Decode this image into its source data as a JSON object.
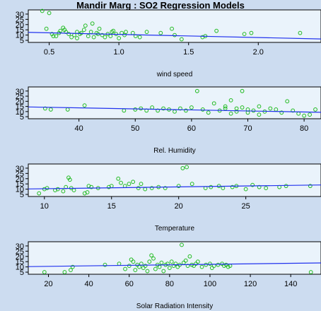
{
  "title": "Mandir Marg : SO2 Regression Models",
  "colors": {
    "background": "#ccdcf0",
    "panel": "#eaf3fb",
    "points": "#22bb22",
    "regression_line": "#2233ee",
    "axes": "#000000"
  },
  "chart_data": [
    {
      "type": "scatter",
      "title": "Mandir Marg : SO2 Regression Models",
      "xlabel": "wind speed",
      "ylabel": "",
      "xlim": [
        0.35,
        2.45
      ],
      "ylim": [
        3,
        34
      ],
      "xticks": [
        0.5,
        1.0,
        1.5,
        2.0
      ],
      "xtick_labels": [
        "0.5",
        "1.0",
        "1.5",
        "2.0"
      ],
      "yticks": [
        5,
        10,
        15,
        20,
        25,
        30
      ],
      "grid": false,
      "regression_line": [
        [
          0.35,
          12.6
        ],
        [
          2.45,
          6.3
        ]
      ],
      "points": [
        [
          0.45,
          33
        ],
        [
          0.48,
          16
        ],
        [
          0.5,
          31
        ],
        [
          0.52,
          11
        ],
        [
          0.53,
          9
        ],
        [
          0.55,
          9
        ],
        [
          0.57,
          12
        ],
        [
          0.58,
          14
        ],
        [
          0.6,
          17
        ],
        [
          0.61,
          15
        ],
        [
          0.62,
          13
        ],
        [
          0.64,
          11
        ],
        [
          0.66,
          8
        ],
        [
          0.68,
          10
        ],
        [
          0.7,
          13
        ],
        [
          0.7,
          7
        ],
        [
          0.72,
          11
        ],
        [
          0.73,
          12
        ],
        [
          0.75,
          15
        ],
        [
          0.76,
          19
        ],
        [
          0.78,
          9
        ],
        [
          0.8,
          13
        ],
        [
          0.81,
          21
        ],
        [
          0.82,
          8
        ],
        [
          0.84,
          12
        ],
        [
          0.85,
          11
        ],
        [
          0.86,
          16
        ],
        [
          0.88,
          10
        ],
        [
          0.9,
          8
        ],
        [
          0.92,
          11
        ],
        [
          0.94,
          9
        ],
        [
          0.95,
          13
        ],
        [
          0.96,
          14
        ],
        [
          0.98,
          11
        ],
        [
          1.0,
          7
        ],
        [
          1.02,
          12
        ],
        [
          1.04,
          10
        ],
        [
          1.05,
          13
        ],
        [
          1.1,
          12
        ],
        [
          1.12,
          9
        ],
        [
          1.15,
          8
        ],
        [
          1.2,
          13
        ],
        [
          1.3,
          12
        ],
        [
          1.38,
          16
        ],
        [
          1.4,
          10
        ],
        [
          1.45,
          6
        ],
        [
          1.6,
          8
        ],
        [
          1.62,
          9
        ],
        [
          1.7,
          14
        ],
        [
          1.9,
          11
        ],
        [
          1.95,
          12
        ],
        [
          2.3,
          12
        ]
      ]
    },
    {
      "type": "scatter",
      "xlabel": "Rel. Humidity",
      "ylabel": "",
      "xlim": [
        31,
        83
      ],
      "ylim": [
        3,
        34
      ],
      "xticks": [
        40,
        50,
        60,
        70,
        80
      ],
      "xtick_labels": [
        "40",
        "50",
        "60",
        "70",
        "80"
      ],
      "yticks": [
        5,
        10,
        15,
        20,
        25,
        30
      ],
      "grid": false,
      "regression_line": [
        [
          31,
          14.5
        ],
        [
          83,
          9.3
        ]
      ],
      "points": [
        [
          34,
          13
        ],
        [
          35,
          12
        ],
        [
          38,
          12
        ],
        [
          41,
          16
        ],
        [
          48,
          11
        ],
        [
          50,
          12
        ],
        [
          51,
          13
        ],
        [
          52,
          11
        ],
        [
          53,
          14
        ],
        [
          54,
          11
        ],
        [
          55,
          13
        ],
        [
          56,
          12
        ],
        [
          57,
          10
        ],
        [
          58,
          13
        ],
        [
          59,
          11
        ],
        [
          60,
          14
        ],
        [
          61,
          30
        ],
        [
          62,
          12
        ],
        [
          63,
          9
        ],
        [
          64,
          18
        ],
        [
          65,
          11
        ],
        [
          66,
          13
        ],
        [
          66,
          15
        ],
        [
          67,
          8
        ],
        [
          67,
          21
        ],
        [
          68,
          10
        ],
        [
          68,
          13
        ],
        [
          69,
          30
        ],
        [
          69,
          14
        ],
        [
          70,
          12
        ],
        [
          70,
          9
        ],
        [
          71,
          11
        ],
        [
          72,
          15
        ],
        [
          72,
          7
        ],
        [
          73,
          10
        ],
        [
          74,
          13
        ],
        [
          75,
          12
        ],
        [
          76,
          9
        ],
        [
          77,
          20
        ],
        [
          78,
          11
        ],
        [
          79,
          8
        ],
        [
          80,
          6
        ],
        [
          81,
          7
        ],
        [
          82,
          12
        ]
      ]
    },
    {
      "type": "scatter",
      "xlabel": "Temperature",
      "ylabel": "",
      "xlim": [
        8.8,
        30.6
      ],
      "ylim": [
        3,
        34
      ],
      "xticks": [
        10,
        15,
        20,
        25
      ],
      "xtick_labels": [
        "10",
        "15",
        "20",
        "25"
      ],
      "yticks": [
        5,
        10,
        15,
        20,
        25,
        30
      ],
      "grid": false,
      "regression_line": [
        [
          8.8,
          10.2
        ],
        [
          30.6,
          14.0
        ]
      ],
      "points": [
        [
          9.6,
          6
        ],
        [
          10.0,
          10
        ],
        [
          10.2,
          11
        ],
        [
          10.8,
          9
        ],
        [
          11.0,
          10
        ],
        [
          11.4,
          8
        ],
        [
          11.6,
          12
        ],
        [
          11.8,
          21
        ],
        [
          11.9,
          19
        ],
        [
          12.0,
          11
        ],
        [
          12.2,
          9
        ],
        [
          13.0,
          6
        ],
        [
          13.2,
          7
        ],
        [
          13.3,
          13
        ],
        [
          13.5,
          12
        ],
        [
          14.0,
          11
        ],
        [
          14.8,
          12
        ],
        [
          15.0,
          13
        ],
        [
          15.5,
          20
        ],
        [
          15.7,
          16
        ],
        [
          16.0,
          13
        ],
        [
          16.3,
          15
        ],
        [
          16.6,
          17
        ],
        [
          17.0,
          11
        ],
        [
          17.2,
          15
        ],
        [
          17.5,
          10
        ],
        [
          18.0,
          11
        ],
        [
          18.5,
          12
        ],
        [
          19.0,
          11
        ],
        [
          20.0,
          13
        ],
        [
          20.3,
          30
        ],
        [
          20.6,
          31
        ],
        [
          21.0,
          15
        ],
        [
          22.0,
          11
        ],
        [
          22.4,
          12
        ],
        [
          23.0,
          13
        ],
        [
          23.3,
          11
        ],
        [
          24.0,
          12
        ],
        [
          24.3,
          13
        ],
        [
          25.0,
          10
        ],
        [
          25.5,
          14
        ],
        [
          26.0,
          12
        ],
        [
          26.5,
          11
        ],
        [
          27.5,
          12
        ],
        [
          28.0,
          13
        ],
        [
          29.8,
          13
        ]
      ]
    },
    {
      "type": "scatter",
      "xlabel": "Solar Radiation Intensity",
      "ylabel": "",
      "xlim": [
        10,
        155
      ],
      "ylim": [
        3,
        34
      ],
      "xticks": [
        20,
        40,
        60,
        80,
        100,
        120,
        140
      ],
      "xtick_labels": [
        "20",
        "40",
        "60",
        "80",
        "100",
        "120",
        "140"
      ],
      "yticks": [
        5,
        10,
        15,
        20,
        25,
        30
      ],
      "grid": false,
      "regression_line": [
        [
          10,
          10.3
        ],
        [
          155,
          13.8
        ]
      ],
      "points": [
        [
          18,
          5
        ],
        [
          28,
          5
        ],
        [
          31,
          7
        ],
        [
          32,
          10
        ],
        [
          48,
          12
        ],
        [
          55,
          13
        ],
        [
          58,
          8
        ],
        [
          60,
          11
        ],
        [
          61,
          17
        ],
        [
          62,
          15
        ],
        [
          63,
          7
        ],
        [
          64,
          12
        ],
        [
          65,
          10
        ],
        [
          66,
          13
        ],
        [
          67,
          9
        ],
        [
          68,
          11
        ],
        [
          69,
          6
        ],
        [
          70,
          15
        ],
        [
          71,
          21
        ],
        [
          72,
          18
        ],
        [
          73,
          8
        ],
        [
          74,
          12
        ],
        [
          75,
          10
        ],
        [
          76,
          14
        ],
        [
          77,
          6
        ],
        [
          78,
          12
        ],
        [
          79,
          13
        ],
        [
          80,
          9
        ],
        [
          81,
          15
        ],
        [
          82,
          11
        ],
        [
          83,
          13
        ],
        [
          84,
          10
        ],
        [
          85,
          12
        ],
        [
          86,
          31
        ],
        [
          87,
          14
        ],
        [
          88,
          16
        ],
        [
          89,
          11
        ],
        [
          90,
          20
        ],
        [
          91,
          12
        ],
        [
          92,
          11
        ],
        [
          93,
          13
        ],
        [
          94,
          15
        ],
        [
          96,
          10
        ],
        [
          98,
          12
        ],
        [
          100,
          13
        ],
        [
          101,
          9
        ],
        [
          102,
          11
        ],
        [
          104,
          12
        ],
        [
          106,
          13
        ],
        [
          107,
          11
        ],
        [
          108,
          12
        ],
        [
          109,
          10
        ],
        [
          110,
          11
        ],
        [
          150,
          5
        ]
      ]
    }
  ]
}
